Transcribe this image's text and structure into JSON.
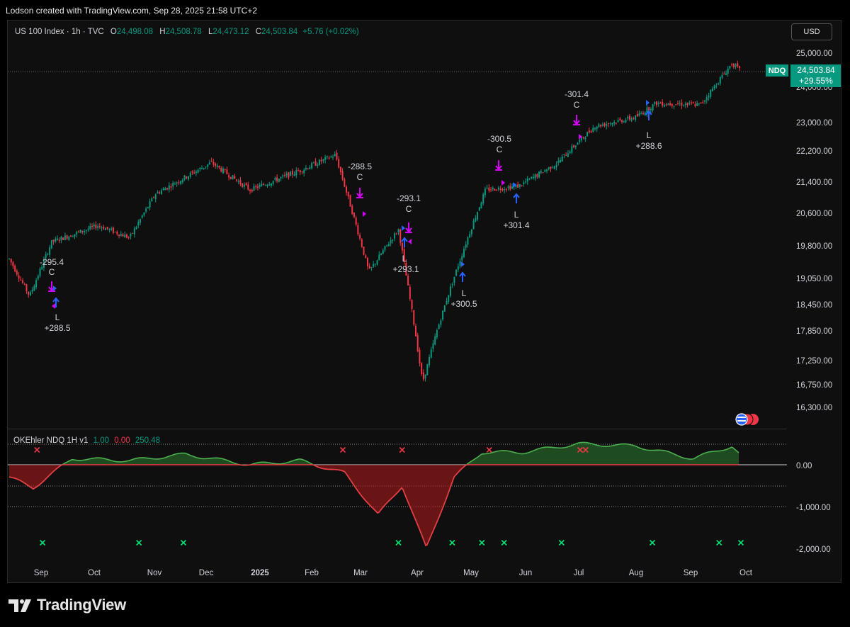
{
  "caption": "Lodson created with TradingView.com, Sep 28, 2025 21:58 UTC+2",
  "legend": {
    "symbol": "US 100 Index · 1h · TVC",
    "open_label": "O",
    "open": "24,498.08",
    "high_label": "H",
    "high": "24,508.78",
    "low_label": "L",
    "low": "24,473.12",
    "close_label": "C",
    "close": "24,503.84",
    "change": "+5.76 (+0.02%)"
  },
  "currency_button": "USD",
  "price_axis": {
    "ticks": [
      "25,000.00",
      "24,000.00",
      "23,000.00",
      "22,200.00",
      "21,400.00",
      "20,600.00",
      "19,800.00",
      "19,050.00",
      "18,450.00",
      "17,850.00",
      "17,250.00",
      "16,750.00",
      "16,300.00"
    ]
  },
  "last_price": {
    "ticker": "NDQ",
    "price": "24,503.84",
    "change": "+29.55%"
  },
  "indicator": {
    "name": "OKEhler NDQ 1H v1",
    "v1": "1.00",
    "v2": "0.00",
    "v3": "250.48",
    "axis_ticks": [
      "0.00",
      "-1,000.00",
      "-2,000.00"
    ]
  },
  "time_axis": [
    "Sep",
    "Oct",
    "Nov",
    "Dec",
    "2025",
    "Feb",
    "Mar",
    "Apr",
    "May",
    "Jun",
    "Jul",
    "Aug",
    "Sep",
    "Oct"
  ],
  "trades": [
    {
      "close_pnl": "-295.4",
      "close_tag": "C",
      "long_tag": "L",
      "long_pnl": "+288.5"
    },
    {
      "close_pnl": "-288.5",
      "close_tag": "C"
    },
    {
      "close_pnl": "-293.1",
      "close_tag": "C",
      "long_tag": "L",
      "long_pnl": "+293.1"
    },
    {
      "long_tag": "L",
      "long_pnl": "+300.5"
    },
    {
      "close_pnl": "-300.5",
      "close_tag": "C"
    },
    {
      "long_tag": "L",
      "long_pnl": "+301.4"
    },
    {
      "close_pnl": "-301.4",
      "close_tag": "C"
    },
    {
      "long_tag": "L",
      "long_pnl": "+288.6"
    }
  ],
  "footer_brand": "TradingView",
  "colors": {
    "up": "#089981",
    "down": "#f23645",
    "accent_green": "#2e7d32",
    "marker_magenta": "#d500f9",
    "marker_blue": "#2962ff"
  },
  "chart_data": {
    "type": "candlestick",
    "price_series_approx": {
      "dates": [
        "2024-08-28",
        "2024-09-08",
        "2024-09-20",
        "2024-10-15",
        "2024-11-01",
        "2024-11-15",
        "2024-12-15",
        "2025-01-05",
        "2025-02-01",
        "2025-02-20",
        "2025-03-10",
        "2025-03-26",
        "2025-04-08",
        "2025-04-22",
        "2025-05-12",
        "2025-05-30",
        "2025-06-20",
        "2025-07-10",
        "2025-08-01",
        "2025-08-12",
        "2025-09-05",
        "2025-09-22",
        "2025-09-26"
      ],
      "close": [
        19500,
        18650,
        19900,
        20300,
        20000,
        21100,
        21900,
        21200,
        21700,
        22100,
        19200,
        20200,
        16800,
        18700,
        21200,
        21300,
        21900,
        22900,
        23150,
        23550,
        23500,
        24700,
        24503.84
      ]
    },
    "indicator_series_approx": {
      "dates": [
        "2024-08-28",
        "2024-09-10",
        "2024-10-01",
        "2024-11-01",
        "2024-12-01",
        "2025-01-05",
        "2025-02-01",
        "2025-02-25",
        "2025-03-15",
        "2025-03-28",
        "2025-04-10",
        "2025-04-25",
        "2025-05-10",
        "2025-06-01",
        "2025-07-01",
        "2025-08-01",
        "2025-09-01",
        "2025-09-22",
        "2025-09-26"
      ],
      "values": [
        -300,
        -550,
        150,
        100,
        250,
        0,
        100,
        -200,
        -1200,
        -500,
        -2000,
        -300,
        300,
        300,
        500,
        450,
        150,
        450,
        250
      ]
    },
    "ylim_price": [
      16000,
      25300
    ],
    "ylim_indicator": [
      -2100,
      600
    ]
  }
}
